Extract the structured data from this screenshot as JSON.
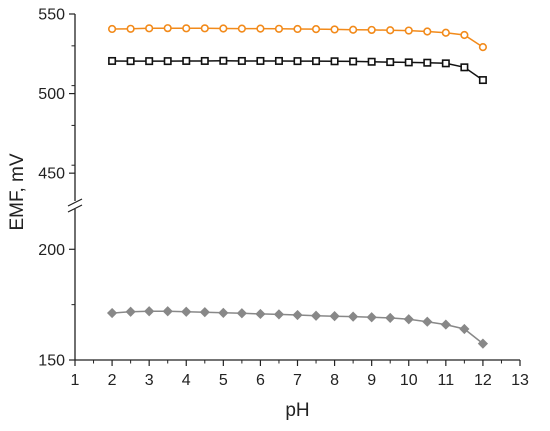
{
  "chart_data": {
    "type": "line",
    "xlabel": "pH",
    "ylabel": "EMF, mV",
    "xlim": [
      1,
      13
    ],
    "x_ticks": [
      "1",
      "2",
      "3",
      "4",
      "5",
      "6",
      "7",
      "8",
      "9",
      "10",
      "11",
      "12",
      "13"
    ],
    "y_broken_axis": true,
    "y_segments": [
      {
        "range": [
          150,
          220
        ],
        "ticks": [
          "150",
          "200"
        ]
      },
      {
        "range": [
          430,
          550
        ],
        "ticks": [
          "450",
          "500",
          "550"
        ]
      }
    ],
    "grid": false,
    "x": [
      2,
      2.5,
      3,
      3.5,
      4,
      4.5,
      5,
      5.5,
      6,
      6.5,
      7,
      7.5,
      8,
      8.5,
      9,
      9.5,
      10,
      10.5,
      11,
      11.5,
      12
    ],
    "series": [
      {
        "color": "#f28a1a",
        "marker": "circle",
        "values": [
          540.6,
          540.7,
          541.0,
          541.1,
          541.0,
          541.0,
          540.9,
          540.8,
          540.8,
          540.7,
          540.6,
          540.5,
          540.3,
          540.1,
          540.0,
          539.8,
          539.6,
          539.0,
          538.2,
          536.8,
          529.2
        ]
      },
      {
        "color": "#111111",
        "marker": "square",
        "values": [
          520.5,
          520.4,
          520.4,
          520.4,
          520.5,
          520.5,
          520.6,
          520.5,
          520.5,
          520.5,
          520.4,
          520.4,
          520.3,
          520.2,
          520.0,
          519.8,
          519.6,
          519.4,
          519.0,
          516.5,
          508.5
        ]
      },
      {
        "color": "#888888",
        "marker": "diamond",
        "values": [
          171.2,
          171.8,
          172.0,
          172.0,
          171.8,
          171.6,
          171.3,
          171.1,
          170.8,
          170.6,
          170.3,
          170.0,
          169.8,
          169.6,
          169.3,
          169.0,
          168.4,
          167.3,
          166.0,
          164.0,
          157.4
        ]
      }
    ]
  }
}
